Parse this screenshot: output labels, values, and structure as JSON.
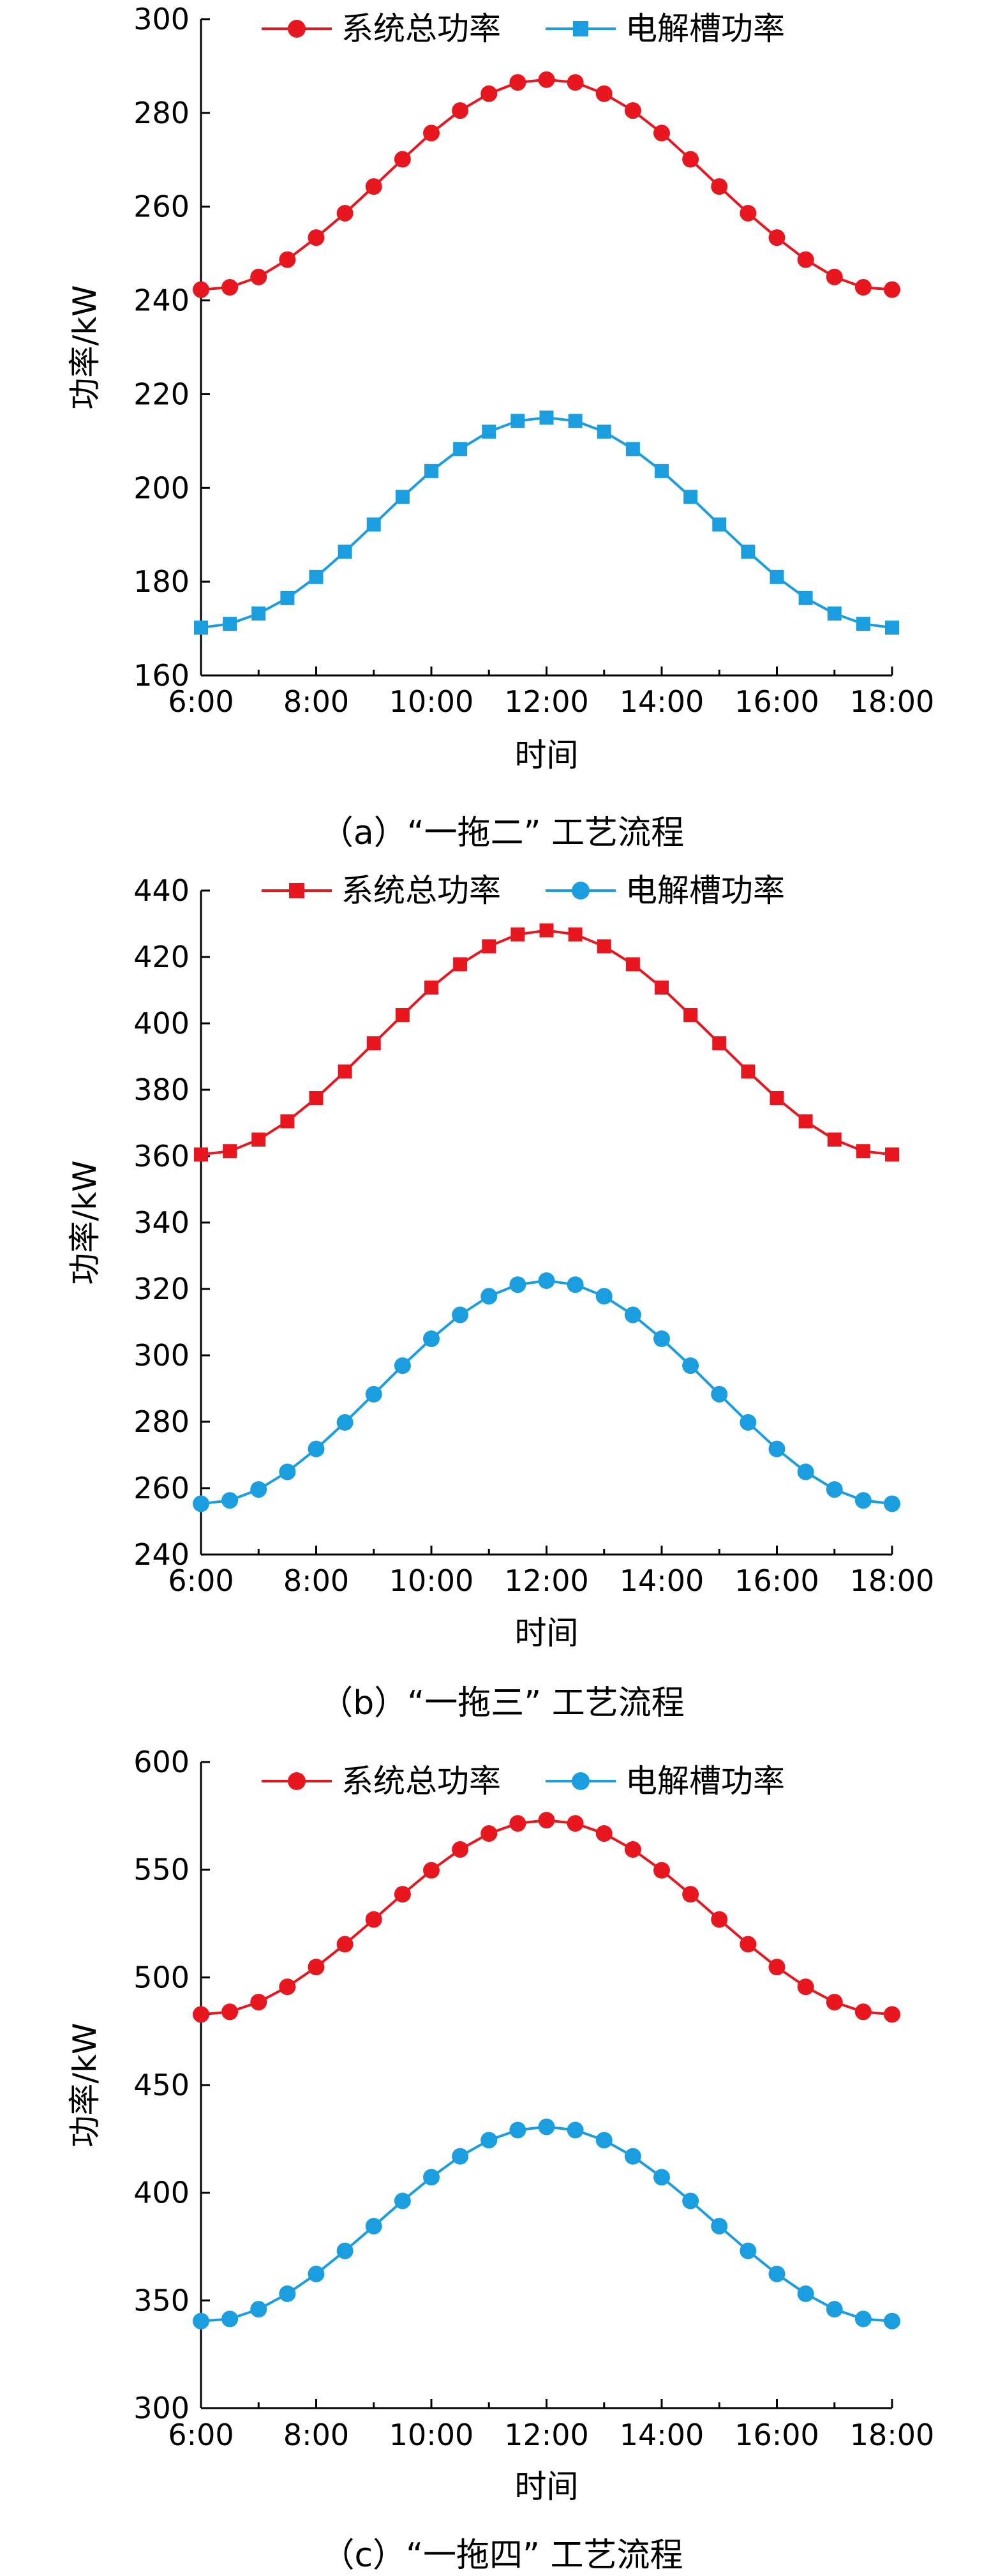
{
  "chart_data": [
    {
      "type": "line",
      "caption": "（a）“一拖二” 工艺流程",
      "xlabel": "时间",
      "ylabel": "功率/kW",
      "x_ticks": [
        "6:00",
        "8:00",
        "10:00",
        "12:00",
        "14:00",
        "16:00",
        "18:00"
      ],
      "y_ticks": [
        160,
        180,
        200,
        220,
        240,
        260,
        280,
        300
      ],
      "ylim": [
        160,
        300
      ],
      "x_hours": [
        6,
        6.5,
        7,
        7.5,
        8,
        8.5,
        9,
        9.5,
        10,
        10.5,
        11,
        11.5,
        12,
        12.5,
        13,
        13.5,
        14,
        14.5,
        15,
        15.5,
        16,
        16.5,
        17,
        17.5,
        18
      ],
      "legend_position": "top",
      "series": [
        {
          "name": "系统总功率",
          "color": "#e8161e",
          "marker": "circle",
          "values": [
            242.3,
            242.8,
            245.0,
            248.7,
            253.4,
            258.6,
            264.3,
            270.1,
            275.7,
            280.5,
            284.1,
            286.5,
            287.1,
            286.5,
            284.1,
            280.5,
            275.7,
            270.1,
            264.3,
            258.6,
            253.4,
            248.7,
            245.0,
            242.8,
            242.3
          ]
        },
        {
          "name": "电解槽功率",
          "color": "#1a9ee0",
          "marker": "square",
          "values": [
            170.2,
            171.0,
            173.2,
            176.5,
            181.0,
            186.4,
            192.2,
            198.1,
            203.6,
            208.3,
            212.0,
            214.3,
            215.0,
            214.3,
            212.0,
            208.3,
            203.6,
            198.1,
            192.2,
            186.4,
            181.0,
            176.5,
            173.2,
            171.0,
            170.2
          ]
        }
      ]
    },
    {
      "type": "line",
      "caption": "（b）“一拖三” 工艺流程",
      "xlabel": "时间",
      "ylabel": "功率/kW",
      "x_ticks": [
        "6:00",
        "8:00",
        "10:00",
        "12:00",
        "14:00",
        "16:00",
        "18:00"
      ],
      "y_ticks": [
        240,
        260,
        280,
        300,
        320,
        340,
        360,
        380,
        400,
        420,
        440
      ],
      "ylim": [
        240,
        440
      ],
      "x_hours": [
        6,
        6.5,
        7,
        7.5,
        8,
        8.5,
        9,
        9.5,
        10,
        10.5,
        11,
        11.5,
        12,
        12.5,
        13,
        13.5,
        14,
        14.5,
        15,
        15.5,
        16,
        16.5,
        17,
        17.5,
        18
      ],
      "legend_position": "top",
      "series": [
        {
          "name": "系统总功率",
          "color": "#e8161e",
          "marker": "square",
          "values": [
            360.5,
            361.5,
            365.0,
            370.5,
            377.5,
            385.5,
            394.0,
            402.5,
            410.8,
            417.8,
            423.2,
            426.8,
            428.0,
            426.8,
            423.2,
            417.8,
            410.8,
            402.5,
            394.0,
            385.5,
            377.5,
            370.5,
            365.0,
            361.5,
            360.5
          ]
        },
        {
          "name": "电解槽功率",
          "color": "#1a9ee0",
          "marker": "circle",
          "values": [
            255.3,
            256.3,
            259.6,
            264.9,
            271.8,
            279.8,
            288.3,
            296.9,
            305.0,
            312.2,
            317.8,
            321.3,
            322.5,
            321.3,
            317.8,
            312.2,
            305.0,
            296.9,
            288.3,
            279.8,
            271.8,
            264.9,
            259.6,
            256.3,
            255.3
          ]
        }
      ]
    },
    {
      "type": "line",
      "caption": "（c）“一拖四” 工艺流程",
      "xlabel": "时间",
      "ylabel": "功率/kW",
      "x_ticks": [
        "6:00",
        "8:00",
        "10:00",
        "12:00",
        "14:00",
        "16:00",
        "18:00"
      ],
      "y_ticks": [
        300,
        350,
        400,
        450,
        500,
        550,
        600
      ],
      "ylim": [
        300,
        600
      ],
      "x_hours": [
        6,
        6.5,
        7,
        7.5,
        8,
        8.5,
        9,
        9.5,
        10,
        10.5,
        11,
        11.5,
        12,
        12.5,
        13,
        13.5,
        14,
        14.5,
        15,
        15.5,
        16,
        16.5,
        17,
        17.5,
        18
      ],
      "legend_position": "top",
      "series": [
        {
          "name": "系统总功率",
          "color": "#e8161e",
          "marker": "circle",
          "values": [
            482.8,
            484.0,
            488.5,
            495.6,
            504.8,
            515.4,
            526.9,
            538.6,
            549.7,
            559.4,
            566.8,
            571.5,
            573.0,
            571.5,
            566.8,
            559.4,
            549.7,
            538.6,
            526.9,
            515.4,
            504.8,
            495.6,
            488.5,
            484.0,
            482.8
          ]
        },
        {
          "name": "电解槽功率",
          "color": "#1a9ee0",
          "marker": "circle",
          "values": [
            340.4,
            341.4,
            345.9,
            353.1,
            362.3,
            373.0,
            384.5,
            396.2,
            407.2,
            416.9,
            424.4,
            429.1,
            430.6,
            429.1,
            424.4,
            416.9,
            407.2,
            396.2,
            384.5,
            373.0,
            362.3,
            353.1,
            345.9,
            341.4,
            340.4
          ]
        }
      ]
    }
  ]
}
